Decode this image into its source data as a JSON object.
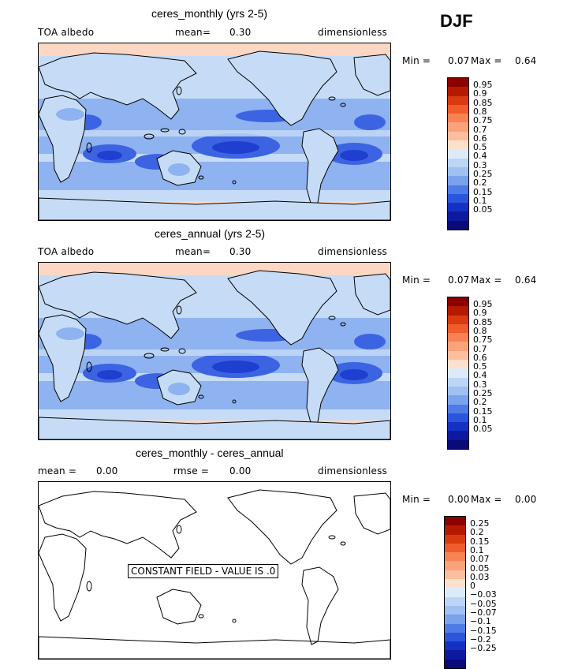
{
  "season": "DJF",
  "panels": [
    {
      "title": "ceres_monthly (yrs 2-5)",
      "left_label": "TOA albedo",
      "mean_label": "mean=",
      "mean_value": "0.30",
      "units": "dimensionless",
      "min_label": "Min =",
      "min_value": "0.07",
      "max_label": "Max =",
      "max_value": "0.64",
      "legend_ticks": [
        "0.95",
        "0.9",
        "0.85",
        "0.8",
        "0.75",
        "0.7",
        "0.6",
        "0.5",
        "0.4",
        "0.3",
        "0.25",
        "0.2",
        "0.15",
        "0.1",
        "0.05"
      ]
    },
    {
      "title": "ceres_annual (yrs 2-5)",
      "left_label": "TOA albedo",
      "mean_label": "mean=",
      "mean_value": "0.30",
      "units": "dimensionless",
      "min_label": "Min =",
      "min_value": "0.07",
      "max_label": "Max =",
      "max_value": "0.64",
      "legend_ticks": [
        "0.95",
        "0.9",
        "0.85",
        "0.8",
        "0.75",
        "0.7",
        "0.6",
        "0.5",
        "0.4",
        "0.3",
        "0.25",
        "0.2",
        "0.15",
        "0.1",
        "0.05"
      ]
    },
    {
      "title": "ceres_monthly - ceres_annual",
      "mean_label": "mean =",
      "mean_value": "0.00",
      "rmse_label": "rmse =",
      "rmse_value": "0.00",
      "units": "dimensionless",
      "min_label": "Min =",
      "min_value": "0.00",
      "max_label": "Max =",
      "max_value": "0.00",
      "constant_note": "CONSTANT FIELD - VALUE IS .0",
      "legend_ticks": [
        "0.25",
        "0.2",
        "0.15",
        "0.1",
        "0.07",
        "0.05",
        "0.03",
        "0",
        "−0.03",
        "−0.05",
        "−0.07",
        "−0.1",
        "−0.15",
        "−0.2",
        "−0.25"
      ]
    }
  ],
  "colors": {
    "scale": [
      "#8b0000",
      "#b51a00",
      "#d93a10",
      "#f05c2c",
      "#f78354",
      "#f9a27c",
      "#fbbf9f",
      "#fde0cc",
      "#dcebfa",
      "#bcd6f6",
      "#9fc0f1",
      "#7aa3ec",
      "#4f7be6",
      "#2b55dd",
      "#1531c4",
      "#0d1aa0",
      "#0a0a78"
    ],
    "ocean_light": "#c6dcf6",
    "ocean_mid": "#8fb2f0",
    "ocean_dark": "#3c63e2",
    "ocean_deep": "#1e3fcf",
    "polar": "#fbd7c4"
  }
}
